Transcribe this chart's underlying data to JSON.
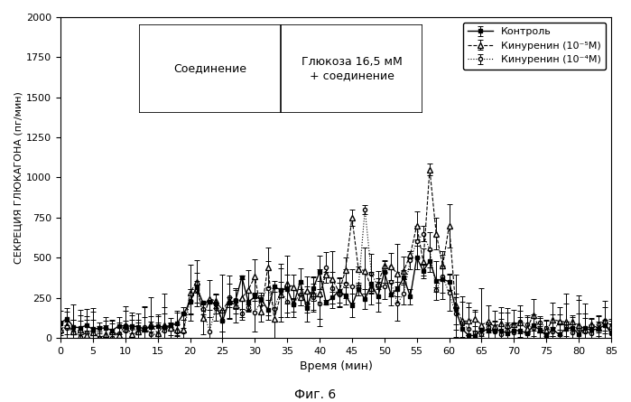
{
  "title": "Фиг. 6",
  "ylabel": "СЕКРЕЦИЯ ГЛЮКАГОНА (пг/мин)",
  "xlabel": "Время (мин)",
  "xlim": [
    0,
    85
  ],
  "ylim": [
    0,
    2000
  ],
  "yticks": [
    0,
    250,
    500,
    750,
    1000,
    1250,
    1500,
    1750,
    2000
  ],
  "xticks": [
    0,
    5,
    10,
    15,
    20,
    25,
    30,
    35,
    40,
    45,
    50,
    55,
    60,
    65,
    70,
    75,
    80,
    85
  ],
  "legend_labels": [
    "Контроль",
    "Кинуренин (10⁻⁵М)",
    "Кинуренин (10⁻⁴М)"
  ],
  "table_col1": "Соединение",
  "table_col2": "Глюкоза 16,5 мМ\n+ соединение",
  "background_color": "#ffffff",
  "line_color": "#000000",
  "control_color": "#000000",
  "kin5_color": "#333333",
  "kin4_color": "#555555"
}
